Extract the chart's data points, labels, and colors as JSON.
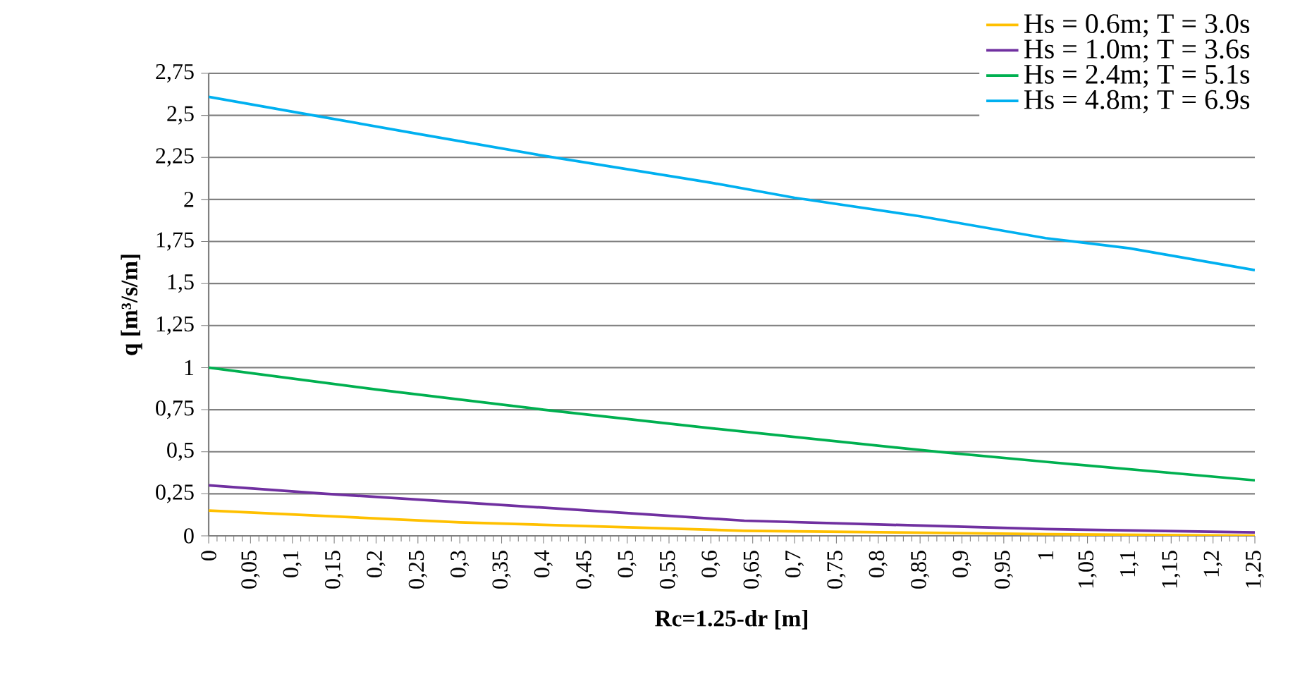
{
  "chart_data": {
    "type": "line",
    "xlabel": "Rc=1.25-dr [m]",
    "ylabel": "q [m³/s/m]",
    "xlim": [
      0,
      1.25
    ],
    "xticks": [
      {
        "value": 0,
        "label": "0"
      },
      {
        "value": 0.05,
        "label": "0,05"
      },
      {
        "value": 0.1,
        "label": "0,1"
      },
      {
        "value": 0.15,
        "label": "0,15"
      },
      {
        "value": 0.2,
        "label": "0,2"
      },
      {
        "value": 0.25,
        "label": "0,25"
      },
      {
        "value": 0.3,
        "label": "0,3"
      },
      {
        "value": 0.35,
        "label": "0,35"
      },
      {
        "value": 0.4,
        "label": "0,4"
      },
      {
        "value": 0.45,
        "label": "0,45"
      },
      {
        "value": 0.5,
        "label": "0,5"
      },
      {
        "value": 0.55,
        "label": "0,55"
      },
      {
        "value": 0.6,
        "label": "0,6"
      },
      {
        "value": 0.65,
        "label": "0,65"
      },
      {
        "value": 0.7,
        "label": "0,7"
      },
      {
        "value": 0.75,
        "label": "0,75"
      },
      {
        "value": 0.8,
        "label": "0,8"
      },
      {
        "value": 0.85,
        "label": "0,85"
      },
      {
        "value": 0.9,
        "label": "0,9"
      },
      {
        "value": 0.95,
        "label": "0,95"
      },
      {
        "value": 1,
        "label": "1"
      },
      {
        "value": 1.05,
        "label": "1,05"
      },
      {
        "value": 1.1,
        "label": "1,1"
      },
      {
        "value": 1.15,
        "label": "1,15"
      },
      {
        "value": 1.2,
        "label": "1,2"
      },
      {
        "value": 1.25,
        "label": "1,25"
      }
    ],
    "ylim": [
      0,
      2.75
    ],
    "yticks": [
      {
        "value": 0,
        "label": "0"
      },
      {
        "value": 0.25,
        "label": "0,25"
      },
      {
        "value": 0.5,
        "label": "0,5"
      },
      {
        "value": 0.75,
        "label": "0,75"
      },
      {
        "value": 1,
        "label": "1"
      },
      {
        "value": 1.25,
        "label": "1,25"
      },
      {
        "value": 1.5,
        "label": "1,5"
      },
      {
        "value": 1.75,
        "label": "1,75"
      },
      {
        "value": 2,
        "label": "2"
      },
      {
        "value": 2.25,
        "label": "2,25"
      },
      {
        "value": 2.5,
        "label": "2,5"
      },
      {
        "value": 2.75,
        "label": "2,75"
      }
    ],
    "grid": "y",
    "legend": "top right",
    "marker": "none",
    "line_style": "solid",
    "series": [
      {
        "name": "Hs = 0.6m;  T = 3.0s",
        "color": "#ffc000",
        "x": [
          0,
          0.3,
          0.64,
          1.0,
          1.25
        ],
        "values": [
          0.15,
          0.08,
          0.03,
          0.01,
          0.0
        ]
      },
      {
        "name": "Hs = 1.0m;  T = 3.6s",
        "color": "#7030a0",
        "x": [
          0,
          0.14,
          0.3,
          0.64,
          1.0,
          1.25
        ],
        "values": [
          0.3,
          0.25,
          0.2,
          0.09,
          0.04,
          0.02
        ]
      },
      {
        "name": "Hs = 2.4m;  T = 5.1s",
        "color": "#00b050",
        "x": [
          0,
          0.2,
          0.4,
          0.6,
          0.87,
          1.0,
          1.25
        ],
        "values": [
          1.0,
          0.87,
          0.75,
          0.64,
          0.5,
          0.44,
          0.33
        ]
      },
      {
        "name": "Hs = 4.8m;  T = 6.9s",
        "color": "#00b0f0",
        "x": [
          0,
          0.125,
          0.25,
          0.4,
          0.6,
          0.7,
          0.85,
          1.0,
          1.1,
          1.25
        ],
        "values": [
          2.61,
          2.5,
          2.39,
          2.26,
          2.1,
          2.01,
          1.9,
          1.77,
          1.71,
          1.58
        ]
      }
    ]
  }
}
